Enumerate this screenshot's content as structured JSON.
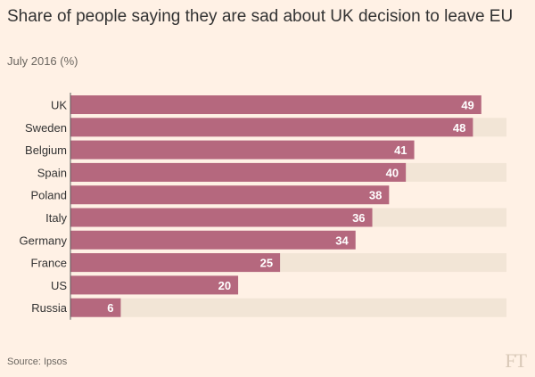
{
  "header": {
    "title": "Share of people saying they are sad about UK decision to leave EU",
    "subtitle": "July 2016 (%)"
  },
  "footer": {
    "source": "Source: Ipsos",
    "logo_text": "FT"
  },
  "colors": {
    "bar": "#b5687e",
    "band": "#f2e5d6",
    "axis": "#5a5a5a",
    "label_inside": "#ffffff"
  },
  "chart_data": {
    "type": "bar",
    "orientation": "horizontal",
    "title": "Share of people saying they are sad about UK decision to leave EU",
    "subtitle": "July 2016 (%)",
    "categories": [
      "UK",
      "Sweden",
      "Belgium",
      "Spain",
      "Poland",
      "Italy",
      "Germany",
      "France",
      "US",
      "Russia"
    ],
    "values": [
      49,
      48,
      41,
      40,
      38,
      36,
      34,
      25,
      20,
      6
    ],
    "xlim": [
      0,
      52
    ],
    "data_labels": true,
    "grid": false
  }
}
